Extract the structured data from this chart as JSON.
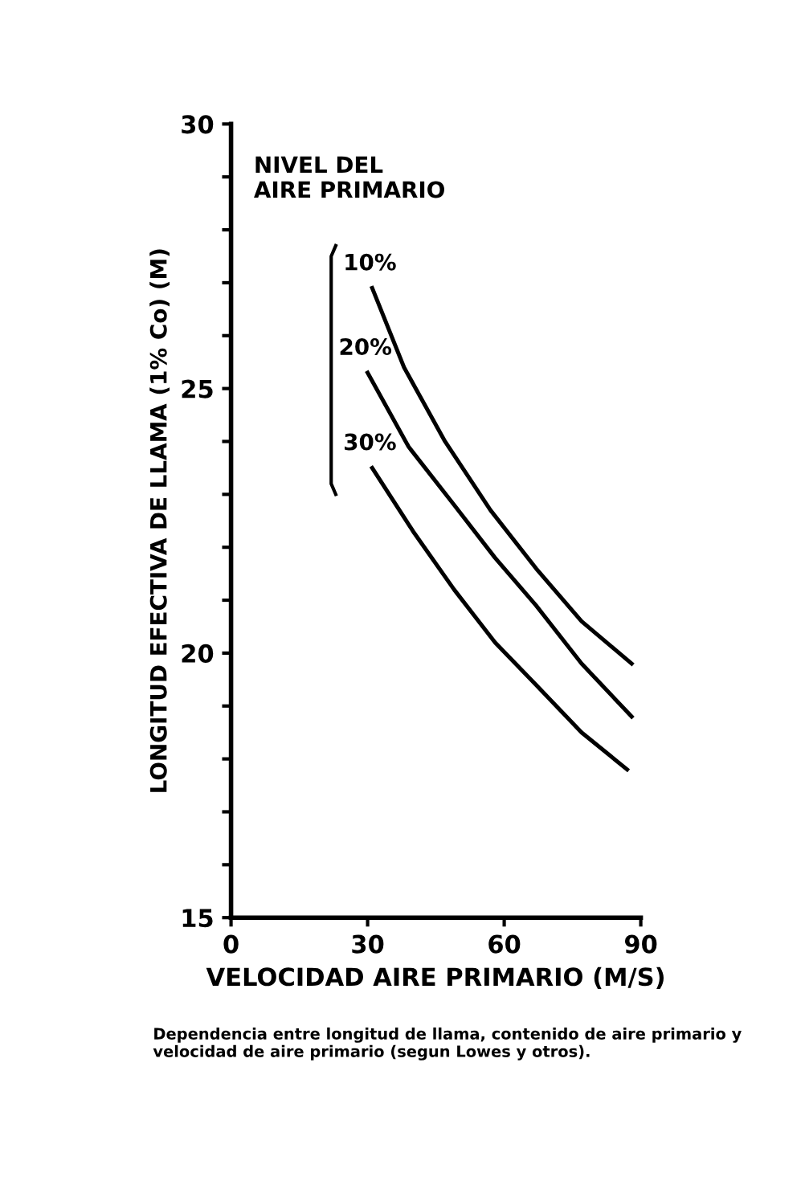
{
  "chart_data": {
    "type": "line",
    "xlabel": "VELOCIDAD AIRE PRIMARIO (M/S)",
    "ylabel": "LONGITUD EFECTIVA DE LLAMA (1% Co) (M)",
    "legend_title": "NIVEL DEL\nAIRE PRIMARIO",
    "legend": false,
    "grid": false,
    "marker": "none",
    "line_style": "solid",
    "xlim": [
      0,
      90
    ],
    "xticks": [
      0,
      30,
      60,
      90
    ],
    "ylim": [
      15,
      30
    ],
    "yticks": [
      15,
      {
        "value": 16,
        "label": null
      },
      {
        "value": 17,
        "label": null
      },
      {
        "value": 18,
        "label": null
      },
      {
        "value": 19,
        "label": null
      },
      20,
      {
        "value": 21,
        "label": null
      },
      {
        "value": 22,
        "label": null
      },
      {
        "value": 23,
        "label": null
      },
      {
        "value": 24,
        "label": null
      },
      25,
      {
        "value": 26,
        "label": null
      },
      {
        "value": 27,
        "label": null
      },
      {
        "value": 28,
        "label": null
      },
      {
        "value": 29,
        "label": null
      },
      30
    ],
    "series": [
      {
        "name": "10%",
        "color": "#000000",
        "x": [
          31,
          38,
          47,
          57,
          67,
          77,
          88
        ],
        "values": [
          26.9,
          25.4,
          24.0,
          22.7,
          21.6,
          20.6,
          19.8
        ]
      },
      {
        "name": "20%",
        "color": "#000000",
        "x": [
          30,
          39,
          49,
          58,
          67,
          77,
          88
        ],
        "values": [
          25.3,
          23.9,
          22.8,
          21.8,
          20.9,
          19.8,
          18.8
        ]
      },
      {
        "name": "30%",
        "color": "#000000",
        "x": [
          31,
          40,
          49,
          58,
          67,
          77,
          87
        ],
        "values": [
          23.5,
          22.3,
          21.2,
          20.2,
          19.4,
          18.5,
          17.8
        ]
      }
    ],
    "annotations": [
      "Dependencia entre longitud de llama, contenido de aire primario y velocidad de aire primario (segun Lowes y otros)."
    ]
  }
}
